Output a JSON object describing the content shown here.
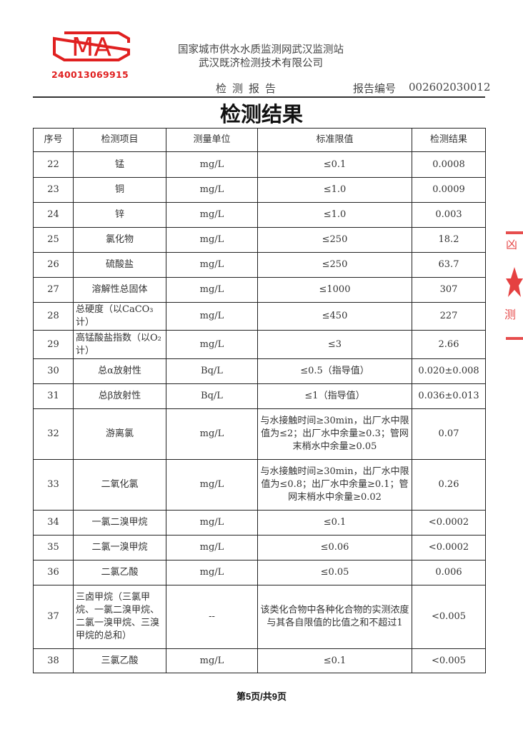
{
  "header": {
    "logo_text": "CMA",
    "logo_number": "240013069915",
    "org_line1": "国家城市供水水质监测网武汉监测站",
    "org_line2": "武汉既济检测技术有限公司",
    "report_type": "检测报告",
    "report_no_label": "报告编号",
    "report_no": "002602030012"
  },
  "title": "检测结果",
  "table": {
    "columns": [
      "序号",
      "检测项目",
      "测量单位",
      "标准限值",
      "检测结果"
    ],
    "rows": [
      {
        "no": "22",
        "item": "锰",
        "unit": "mg/L",
        "limit": "≤0.1",
        "result": "0.0008"
      },
      {
        "no": "23",
        "item": "铜",
        "unit": "mg/L",
        "limit": "≤1.0",
        "result": "0.0009"
      },
      {
        "no": "24",
        "item": "锌",
        "unit": "mg/L",
        "limit": "≤1.0",
        "result": "0.003"
      },
      {
        "no": "25",
        "item": "氯化物",
        "unit": "mg/L",
        "limit": "≤250",
        "result": "18.2"
      },
      {
        "no": "26",
        "item": "硫酸盐",
        "unit": "mg/L",
        "limit": "≤250",
        "result": "63.7"
      },
      {
        "no": "27",
        "item": "溶解性总固体",
        "unit": "mg/L",
        "limit": "≤1000",
        "result": "307"
      },
      {
        "no": "28",
        "item": "总硬度（以CaCO₃计）",
        "unit": "mg/L",
        "limit": "≤450",
        "result": "227"
      },
      {
        "no": "29",
        "item": "高锰酸盐指数（以O₂计）",
        "unit": "mg/L",
        "limit": "≤3",
        "result": "2.66"
      },
      {
        "no": "30",
        "item": "总α放射性",
        "unit": "Bq/L",
        "limit": "≤0.5（指导值）",
        "result": "0.020±0.008"
      },
      {
        "no": "31",
        "item": "总β放射性",
        "unit": "Bq/L",
        "limit": "≤1（指导值）",
        "result": "0.036±0.013"
      },
      {
        "no": "32",
        "item": "游离氯",
        "unit": "mg/L",
        "limit": "与水接触时间≥30min，出厂水中限值为≤2；出厂水中余量≥0.3；管网末梢水中余量≥0.05",
        "result": "0.07"
      },
      {
        "no": "33",
        "item": "二氧化氯",
        "unit": "mg/L",
        "limit": "与水接触时间≥30min，出厂水中限值为≤0.8；出厂水中余量≥0.1；管网末梢水中余量≥0.02",
        "result": "0.26"
      },
      {
        "no": "34",
        "item": "一氯二溴甲烷",
        "unit": "mg/L",
        "limit": "≤0.1",
        "result": "<0.0002"
      },
      {
        "no": "35",
        "item": "二氯一溴甲烷",
        "unit": "mg/L",
        "limit": "≤0.06",
        "result": "<0.0002"
      },
      {
        "no": "36",
        "item": "二氯乙酸",
        "unit": "mg/L",
        "limit": "≤0.05",
        "result": "0.006"
      },
      {
        "no": "37",
        "item": "三卤甲烷（三氯甲烷、一氯二溴甲烷、二氯一溴甲烷、三溴甲烷的总和）",
        "unit": "--",
        "limit": "该类化合物中各种化合物的实测浓度与其各自限值的比值之和不超过1",
        "result": "<0.005"
      },
      {
        "no": "38",
        "item": "三氯乙酸",
        "unit": "mg/L",
        "limit": "≤0.1",
        "result": "<0.005"
      }
    ]
  },
  "footer": {
    "page": "第5页/共9页"
  },
  "colors": {
    "seal_red": "#e02020",
    "text": "#333333"
  }
}
